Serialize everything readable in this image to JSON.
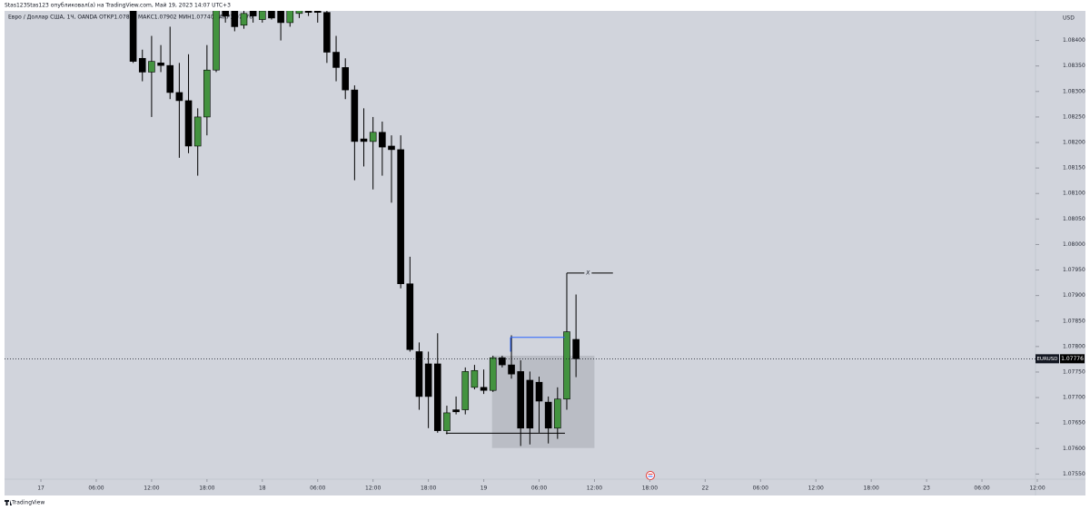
{
  "chart_data": {
    "type": "candlestick",
    "title": "Stas123Stas123 опубликовал(а) на TradingView.com, Май 19, 2023 14:07 UTC+3",
    "subtitle": "Евро / Доллар США, 1Ч, OANDA  ОТКР1.07814  МАКС1.07902  МИН1.07740  ЗАКР1.07776",
    "watermark": "TradingView",
    "y_unit": "USD",
    "symbol": "EURUSD",
    "current_price": 1.07776,
    "up_color": "#43933f",
    "down_color": "#000000",
    "x": [
      10,
      11,
      12,
      13,
      14,
      15,
      16,
      17,
      18,
      19,
      20,
      21,
      22,
      23,
      24,
      25,
      26,
      27,
      28,
      29,
      30,
      31,
      32,
      33,
      34,
      35,
      36,
      37,
      38,
      39,
      40,
      41,
      42,
      43,
      44,
      45,
      46,
      47,
      48,
      49,
      50,
      51,
      52,
      53,
      54,
      55,
      56,
      57,
      58
    ],
    "open": [
      1.0847,
      1.08365,
      1.08338,
      1.08356,
      1.08351,
      1.08298,
      1.08282,
      1.08193,
      1.0825,
      1.08342,
      1.08462,
      1.08458,
      1.0843,
      1.08458,
      1.08441,
      1.08458,
      1.08458,
      1.08435,
      1.08453,
      1.08462,
      1.08462,
      1.08455,
      1.08377,
      1.08347,
      1.08303,
      1.08207,
      1.08202,
      1.0822,
      1.08193,
      1.08186,
      1.07923,
      1.0779,
      1.07766,
      1.07766,
      1.07635,
      1.07676,
      1.07676,
      1.0772,
      1.0772,
      1.07714,
      1.07778,
      1.07764,
      1.07751,
      1.07734,
      1.0773,
      1.07691,
      1.0764,
      1.07697,
      1.07814
    ],
    "high": [
      1.0848,
      1.08382,
      1.08409,
      1.08391,
      1.08427,
      1.08356,
      1.08373,
      1.08267,
      1.08391,
      1.0848,
      1.08475,
      1.0847,
      1.0847,
      1.0847,
      1.0847,
      1.08468,
      1.0847,
      1.08475,
      1.0847,
      1.08475,
      1.08472,
      1.08465,
      1.08409,
      1.08365,
      1.08312,
      1.08267,
      1.0825,
      1.08241,
      1.08214,
      1.08214,
      1.07976,
      1.07808,
      1.0779,
      1.07826,
      1.07684,
      1.07702,
      1.07759,
      1.07764,
      1.07755,
      1.07782,
      1.07782,
      1.07822,
      1.07773,
      1.07751,
      1.07741,
      1.07702,
      1.0772,
      1.07944,
      1.07902
    ],
    "low": [
      1.08356,
      1.0832,
      1.0825,
      1.08338,
      1.08285,
      1.0817,
      1.08179,
      1.08135,
      1.08214,
      1.08338,
      1.08435,
      1.08418,
      1.08423,
      1.08435,
      1.08435,
      1.08441,
      1.084,
      1.08427,
      1.08444,
      1.08448,
      1.08435,
      1.08356,
      1.0832,
      1.08285,
      1.08126,
      1.08153,
      1.08108,
      1.08135,
      1.08082,
      1.07914,
      1.0779,
      1.07676,
      1.0764,
      1.07631,
      1.07628,
      1.07667,
      1.07667,
      1.07716,
      1.07707,
      1.07711,
      1.07759,
      1.07737,
      1.07605,
      1.07608,
      1.07631,
      1.0761,
      1.07619,
      1.07676,
      1.0774
    ],
    "close": [
      1.08359,
      1.08338,
      1.08359,
      1.08351,
      1.08298,
      1.08282,
      1.08193,
      1.0825,
      1.08342,
      1.08471,
      1.08448,
      1.08427,
      1.08453,
      1.08448,
      1.08458,
      1.08444,
      1.08435,
      1.08465,
      1.08462,
      1.08455,
      1.08455,
      1.08377,
      1.08347,
      1.08303,
      1.08202,
      1.08202,
      1.0822,
      1.08191,
      1.08186,
      1.07923,
      1.07794,
      1.07702,
      1.07702,
      1.07635,
      1.0767,
      1.07672,
      1.07751,
      1.07753,
      1.07714,
      1.07778,
      1.07764,
      1.07746,
      1.0764,
      1.0764,
      1.07693,
      1.0764,
      1.07697,
      1.07829,
      1.07776
    ],
    "xlim": [
      -3.94,
      108
    ],
    "ylim": [
      1.0754,
      1.08458
    ],
    "xticks": [
      {
        "value": 0,
        "label": "17"
      },
      {
        "value": 6,
        "label": "06:00"
      },
      {
        "value": 12,
        "label": "12:00"
      },
      {
        "value": 18,
        "label": "18:00"
      },
      {
        "value": 24,
        "label": "18"
      },
      {
        "value": 30,
        "label": "06:00"
      },
      {
        "value": 36,
        "label": "12:00"
      },
      {
        "value": 42,
        "label": "18:00"
      },
      {
        "value": 48,
        "label": "19"
      },
      {
        "value": 54,
        "label": "06:00"
      },
      {
        "value": 60,
        "label": "12:00"
      },
      {
        "value": 66,
        "label": "18:00"
      },
      {
        "value": 72,
        "label": "22"
      },
      {
        "value": 78,
        "label": "06:00"
      },
      {
        "value": 84,
        "label": "12:00"
      },
      {
        "value": 90,
        "label": "18:00"
      },
      {
        "value": 96,
        "label": "23"
      },
      {
        "value": 102,
        "label": "06:00"
      },
      {
        "value": 108,
        "label": "12:00"
      }
    ],
    "yticks": [
      {
        "value": 1.0755,
        "label": "1.07550"
      },
      {
        "value": 1.076,
        "label": "1.07600"
      },
      {
        "value": 1.0765,
        "label": "1.07650"
      },
      {
        "value": 1.077,
        "label": "1.07700"
      },
      {
        "value": 1.0775,
        "label": "1.07750"
      },
      {
        "value": 1.078,
        "label": "1.07800"
      },
      {
        "value": 1.0785,
        "label": "1.07850"
      },
      {
        "value": 1.079,
        "label": "1.07900"
      },
      {
        "value": 1.0795,
        "label": "1.07950"
      },
      {
        "value": 1.08,
        "label": "1.08000"
      },
      {
        "value": 1.0805,
        "label": "1.08050"
      },
      {
        "value": 1.081,
        "label": "1.08100"
      },
      {
        "value": 1.0815,
        "label": "1.08150"
      },
      {
        "value": 1.082,
        "label": "1.08200"
      },
      {
        "value": 1.0825,
        "label": "1.08250"
      },
      {
        "value": 1.083,
        "label": "1.08300"
      },
      {
        "value": 1.0835,
        "label": "1.08350"
      },
      {
        "value": 1.084,
        "label": "1.08400"
      }
    ],
    "rectangle": {
      "x": [
        48.9,
        60
      ],
      "y": [
        1.07601,
        1.07782
      ],
      "color": "#b2b5be"
    },
    "lines": [
      {
        "x": [
          50.9,
          56.8
        ],
        "y": [
          1.07818,
          1.07818
        ],
        "color": "#2962ff"
      },
      {
        "x": [
          50.9,
          50.9
        ],
        "y": [
          1.07818,
          1.0779
        ],
        "color": "#2962ff"
      },
      {
        "x": [
          43.9,
          56.8
        ],
        "y": [
          1.0763,
          1.0763
        ],
        "color": "#000000"
      },
      {
        "x": [
          57,
          62
        ],
        "y": [
          1.07944,
          1.07944
        ],
        "color": "#000000"
      }
    ],
    "annotation": {
      "text": "X",
      "x": 59.3,
      "y": 1.07944
    }
  }
}
